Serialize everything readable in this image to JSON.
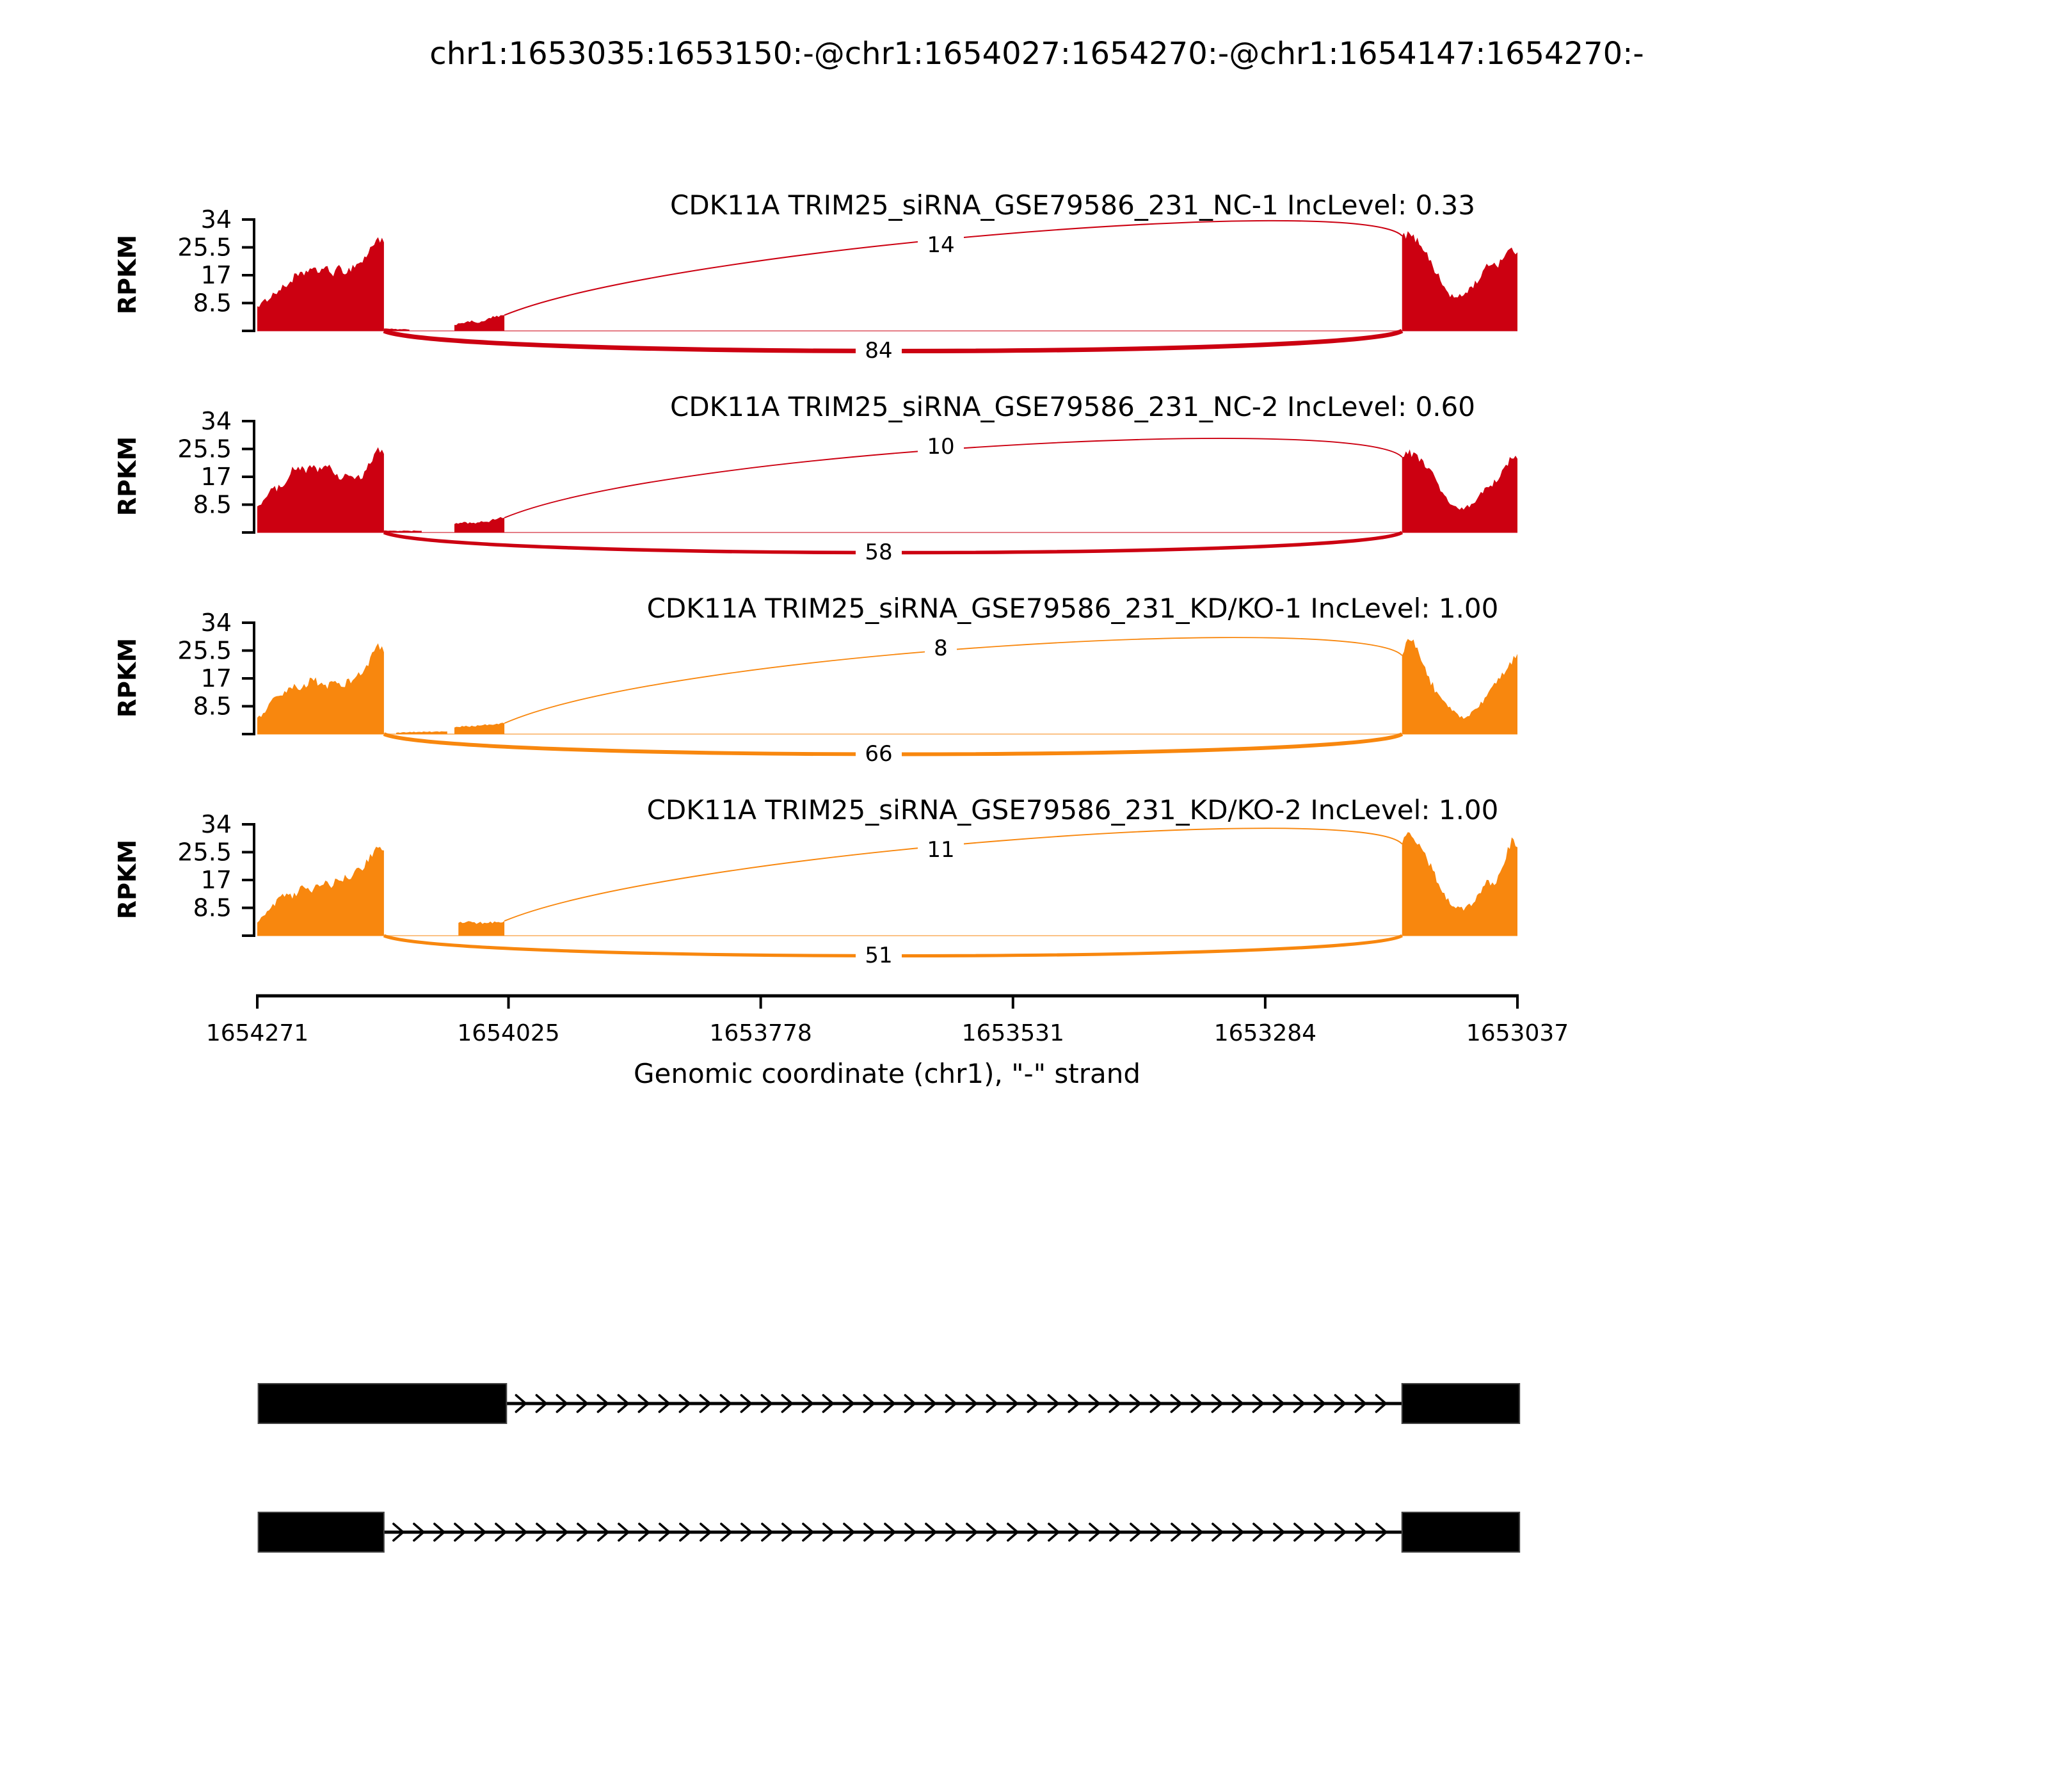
{
  "title": "chr1:1653035:1653150:-@chr1:1654027:1654270:-@chr1:1654147:1654270:-",
  "colors": {
    "nc_red": "#cc0011",
    "kd_orange": "#f8870e",
    "text_black": "#000000",
    "background": "#ffffff",
    "exon_black": "#000000"
  },
  "chart_data": {
    "type": "area",
    "subtype": "sashimi-plot",
    "title": "chr1:1653035:1653150:-@chr1:1654027:1654270:-@chr1:1654147:1654270:-",
    "xlabel": "Genomic coordinate (chr1), \"-\" strand",
    "ylabel": "RPKM",
    "x_ticks": [
      1654271,
      1654025,
      1653778,
      1653531,
      1653284,
      1653037
    ],
    "y_ticks": [
      8.5,
      17,
      25.5,
      34
    ],
    "ylim": [
      0,
      34
    ],
    "grid": false,
    "region": {
      "chrom": "chr1",
      "start": 1654271,
      "end": 1653037,
      "strand": "-"
    },
    "tracks": [
      {
        "label": "CDK11A TRIM25_siRNA_GSE79586_231_NC-1 IncLevel: 0.33",
        "inc_level": "0.33",
        "color": "#cc0011",
        "coverage": [
          {
            "start": 1654271,
            "end": 1654147,
            "profile": [
              7.5,
              9,
              11,
              12.5,
              14,
              16.5,
              17,
              19,
              18,
              19.5,
              17.5,
              19,
              18,
              20,
              21,
              24,
              28.5,
              27
            ]
          },
          {
            "start": 1654147,
            "end": 1654122,
            "profile": [
              0.7,
              0.5,
              0.4
            ]
          },
          {
            "start": 1654078,
            "end": 1654029,
            "profile": [
              1.8,
              2.5,
              2.6,
              3.0,
              2.4,
              3.2,
              4.2,
              4.3,
              4.8
            ]
          },
          {
            "start": 1653150,
            "end": 1653037,
            "profile": [
              29,
              29.5,
              28,
              26,
              22,
              18,
              14,
              11,
              10,
              11,
              13,
              15,
              18,
              21,
              20,
              23,
              25,
              24
            ]
          }
        ],
        "junctions": [
          {
            "type": "inclusion",
            "from": 1654029,
            "to": 1653150,
            "count": 14
          },
          {
            "type": "skipping",
            "from": 1654147,
            "to": 1653150,
            "count": 84
          }
        ]
      },
      {
        "label": "CDK11A TRIM25_siRNA_GSE79586_231_NC-2 IncLevel: 0.60",
        "inc_level": "0.60",
        "color": "#cc0011",
        "coverage": [
          {
            "start": 1654271,
            "end": 1654147,
            "profile": [
              8,
              10,
              13,
              13.5,
              16,
              19,
              20,
              18.5,
              20.5,
              19,
              21,
              17,
              16.5,
              18,
              16,
              17,
              21,
              25.4,
              24
            ]
          },
          {
            "start": 1654147,
            "end": 1654110,
            "profile": [
              0.6,
              0.5,
              0.5
            ]
          },
          {
            "start": 1654078,
            "end": 1654029,
            "profile": [
              2.6,
              3.0,
              2.9,
              3.1,
              3.3,
              4.4,
              4.5
            ]
          },
          {
            "start": 1653150,
            "end": 1653037,
            "profile": [
              23,
              24.5,
              23.5,
              22,
              20,
              17,
              13,
              10,
              8,
              7,
              7.5,
              9,
              11,
              13,
              14,
              17,
              19,
              23,
              22.5
            ]
          }
        ],
        "junctions": [
          {
            "type": "inclusion",
            "from": 1654029,
            "to": 1653150,
            "count": 10
          },
          {
            "type": "skipping",
            "from": 1654147,
            "to": 1653150,
            "count": 58
          }
        ]
      },
      {
        "label": "CDK11A TRIM25_siRNA_GSE79586_231_KD/KO-1 IncLevel: 1.00",
        "inc_level": "1.00",
        "color": "#f8870e",
        "coverage": [
          {
            "start": 1654271,
            "end": 1654147,
            "profile": [
              5,
              6,
              9,
              11,
              11.5,
              13,
              14.5,
              13,
              15,
              17,
              16,
              14,
              15,
              16,
              15,
              16,
              17,
              18,
              20,
              24,
              27.5,
              25
            ]
          },
          {
            "start": 1654135,
            "end": 1654085,
            "profile": [
              0.4,
              0.6,
              0.7,
              0.8
            ]
          },
          {
            "start": 1654078,
            "end": 1654029,
            "profile": [
              2.0,
              2.3,
              2.5,
              2.6,
              2.8,
              3.0,
              3.3
            ]
          },
          {
            "start": 1653150,
            "end": 1653037,
            "profile": [
              24,
              30,
              27,
              22,
              17,
              13,
              10,
              8,
              6,
              5,
              6,
              8,
              10,
              13,
              16,
              19,
              22,
              24.5
            ]
          }
        ],
        "junctions": [
          {
            "type": "inclusion",
            "from": 1654029,
            "to": 1653150,
            "count": 8
          },
          {
            "type": "skipping",
            "from": 1654147,
            "to": 1653150,
            "count": 66
          }
        ]
      },
      {
        "label": "CDK11A TRIM25_siRNA_GSE79586_231_KD/KO-2 IncLevel: 1.00",
        "inc_level": "1.00",
        "color": "#f8870e",
        "coverage": [
          {
            "start": 1654271,
            "end": 1654147,
            "profile": [
              4,
              6,
              8,
              10,
              12,
              13,
              12,
              14,
              15,
              14,
              15.5,
              16,
              15,
              16.5,
              17,
              18,
              19,
              20,
              22,
              25,
              27.5,
              26
            ]
          },
          {
            "start": 1654074,
            "end": 1654029,
            "profile": [
              3.9,
              4.3,
              3.8,
              4.1,
              4.0,
              4.5
            ]
          },
          {
            "start": 1653150,
            "end": 1653037,
            "profile": [
              28,
              31,
              29,
              27,
              24,
              20,
              16,
              12,
              10,
              9,
              8,
              9,
              11,
              14,
              17,
              15,
              18,
              24,
              29,
              27
            ]
          }
        ],
        "junctions": [
          {
            "type": "inclusion",
            "from": 1654029,
            "to": 1653150,
            "count": 11
          },
          {
            "type": "skipping",
            "from": 1654147,
            "to": 1653150,
            "count": 51
          }
        ]
      }
    ],
    "isoforms": [
      {
        "name": "isoform-long-exon",
        "exons": [
          [
            1654270,
            1654027
          ],
          [
            1653150,
            1653035
          ]
        ]
      },
      {
        "name": "isoform-short-exon",
        "exons": [
          [
            1654270,
            1654147
          ],
          [
            1653150,
            1653035
          ]
        ]
      }
    ]
  }
}
